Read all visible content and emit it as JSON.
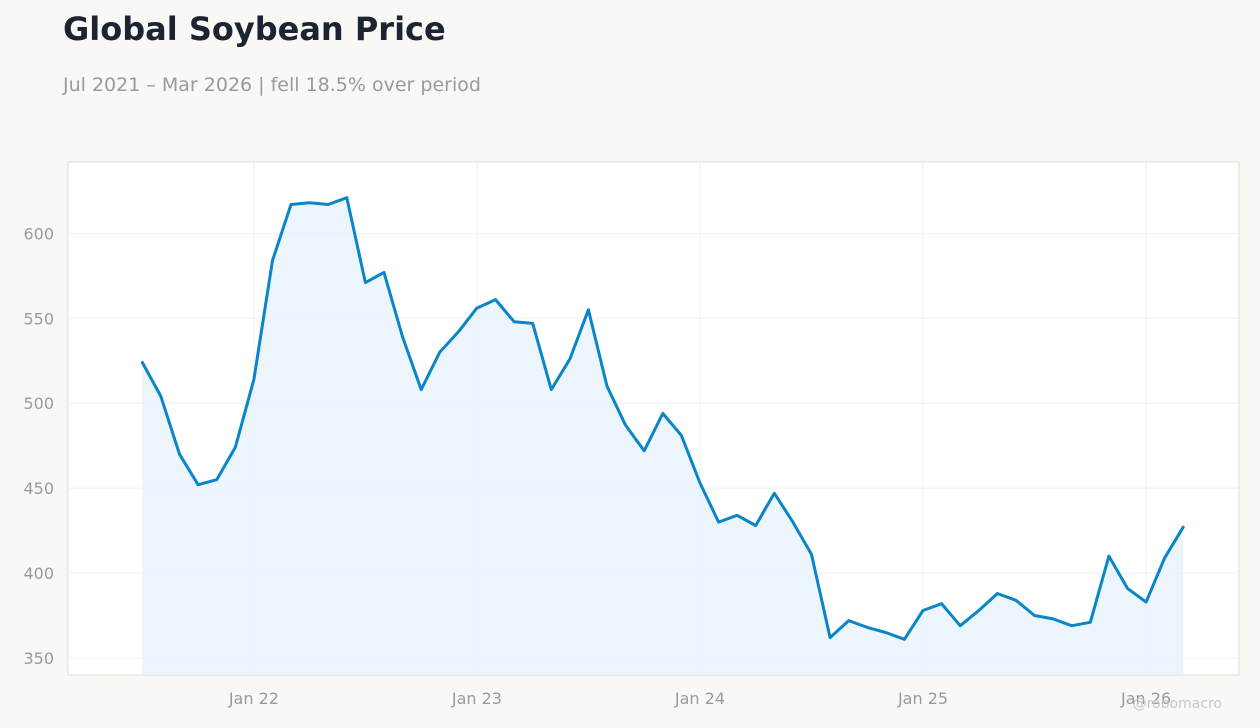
{
  "header": {
    "title": "Global Soybean Price",
    "subtitle": "Jul 2021 – Mar 2026 | fell 18.5% over period"
  },
  "credit": "@robomacro",
  "colors": {
    "line": "#0a85c8",
    "fill": "#e6f2fa",
    "background": "#f9f8f5",
    "plot_background": "#ffffff",
    "grid": "#edf0f3",
    "frame": "#dcdcdc",
    "text": "#9a9a9a",
    "title": "#1c2333"
  },
  "chart_data": {
    "type": "area",
    "title": "Global Soybean Price",
    "subtitle": "Jul 2021 – Mar 2026 | fell 18.5% over period",
    "xlabel": "",
    "ylabel": "",
    "x_range": [
      "2021-03",
      "2026-06"
    ],
    "ylim": [
      340,
      642
    ],
    "grid": true,
    "legend": "none",
    "x_ticks": [
      {
        "date": "2022-01",
        "label": "Jan 22"
      },
      {
        "date": "2023-01",
        "label": "Jan 23"
      },
      {
        "date": "2024-01",
        "label": "Jan 24"
      },
      {
        "date": "2025-01",
        "label": "Jan 25"
      },
      {
        "date": "2026-01",
        "label": "Jan 26"
      }
    ],
    "y_ticks": [
      350,
      400,
      450,
      500,
      550,
      600
    ],
    "series": [
      {
        "x": [
          "2021-07",
          "2021-08",
          "2021-09",
          "2021-10",
          "2021-11",
          "2021-12",
          "2022-01",
          "2022-02",
          "2022-03",
          "2022-04",
          "2022-05",
          "2022-06",
          "2022-07",
          "2022-08",
          "2022-09",
          "2022-10",
          "2022-11",
          "2022-12",
          "2023-01",
          "2023-02",
          "2023-03",
          "2023-04",
          "2023-05",
          "2023-06",
          "2023-07",
          "2023-08",
          "2023-09",
          "2023-10",
          "2023-11",
          "2023-12",
          "2024-01",
          "2024-02",
          "2024-03",
          "2024-04",
          "2024-05",
          "2024-06",
          "2024-07",
          "2024-08",
          "2024-09",
          "2024-10",
          "2024-11",
          "2024-12",
          "2025-01",
          "2025-02",
          "2025-03",
          "2025-04",
          "2025-05",
          "2025-06",
          "2025-07",
          "2025-08",
          "2025-09",
          "2025-10",
          "2025-11",
          "2025-12",
          "2026-01",
          "2026-02",
          "2026-03"
        ],
        "values": [
          524,
          504,
          470,
          452,
          455,
          474,
          514,
          584,
          617,
          618,
          617,
          621,
          571,
          577,
          539,
          508,
          530,
          542,
          556,
          561,
          548,
          547,
          508,
          526,
          555,
          510,
          487,
          472,
          494,
          481,
          453,
          430,
          434,
          428,
          447,
          430,
          411,
          362,
          372,
          368,
          365,
          361,
          378,
          382,
          369,
          378,
          388,
          384,
          375,
          373,
          369,
          371,
          410,
          391,
          383,
          409,
          427
        ]
      }
    ]
  }
}
